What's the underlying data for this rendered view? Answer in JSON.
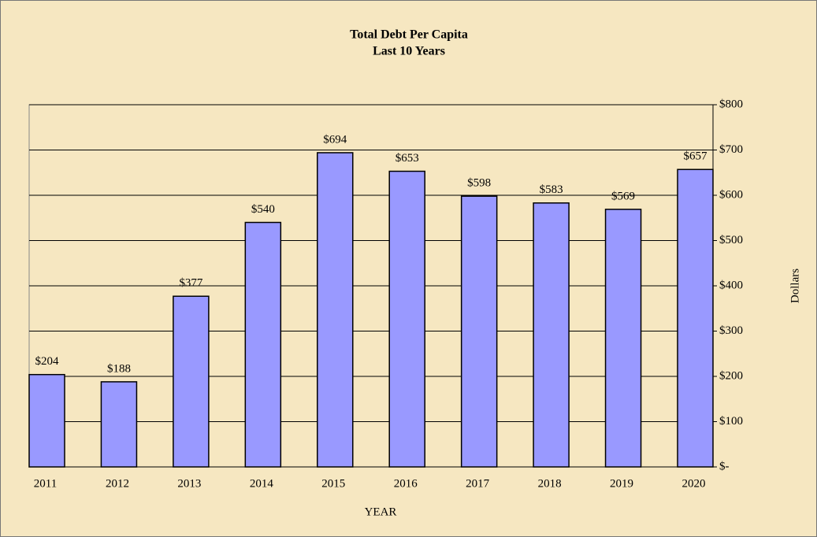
{
  "chart_data": {
    "type": "bar",
    "title": "Total Debt Per Capita",
    "subtitle": "Last 10 Years",
    "x_label": "YEAR",
    "y_label": "Dollars",
    "categories": [
      "2011",
      "2012",
      "2013",
      "2014",
      "2015",
      "2016",
      "2017",
      "2018",
      "2019",
      "2020"
    ],
    "values": [
      204,
      188,
      377,
      540,
      694,
      653,
      598,
      583,
      569,
      657
    ],
    "value_labels": [
      "$204",
      "$188",
      "$377",
      "$540",
      "$694",
      "$653",
      "$598",
      "$583",
      "$569",
      "$657"
    ],
    "color": "#9999ff",
    "ylim": [
      0,
      800
    ],
    "yticks": [
      {
        "value": 0,
        "label": "$-"
      },
      {
        "value": 100,
        "label": "$100"
      },
      {
        "value": 200,
        "label": "$200"
      },
      {
        "value": 300,
        "label": "$300"
      },
      {
        "value": 400,
        "label": "$400"
      },
      {
        "value": 500,
        "label": "$500"
      },
      {
        "value": 600,
        "label": "$600"
      },
      {
        "value": 700,
        "label": "$700"
      },
      {
        "value": 800,
        "label": "$800"
      }
    ],
    "grid": true
  }
}
